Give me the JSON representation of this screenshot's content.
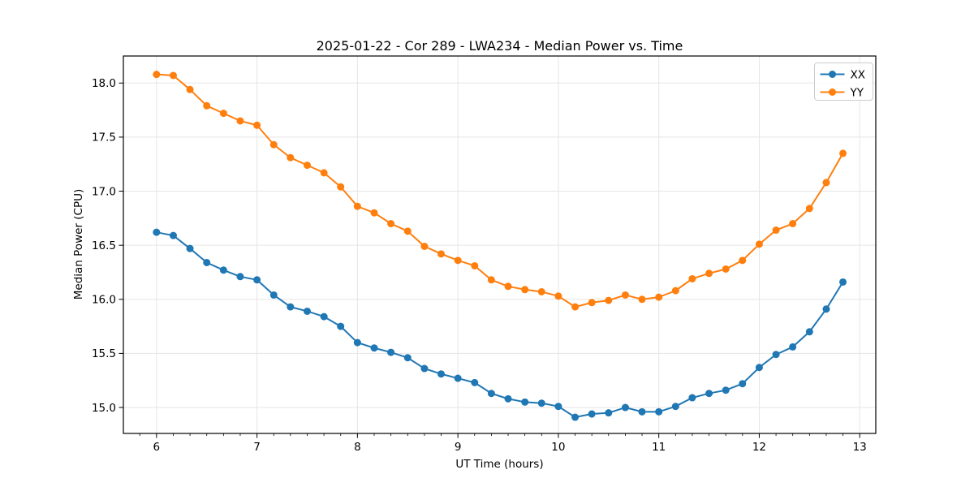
{
  "figure": {
    "background": "#ffffff"
  },
  "chart_data": {
    "type": "line",
    "title": "2025-01-22 - Cor 289 - LWA234 - Median Power vs. Time",
    "xlabel": "UT Time (hours)",
    "ylabel": "Median Power (CPU)",
    "xlim": [
      5.67,
      13.16
    ],
    "ylim": [
      14.76,
      18.25
    ],
    "xticks": [
      6,
      7,
      8,
      9,
      10,
      11,
      12,
      13
    ],
    "xtick_labels": [
      "6",
      "7",
      "8",
      "9",
      "10",
      "11",
      "12",
      "13"
    ],
    "yticks": [
      15.0,
      15.5,
      16.0,
      16.5,
      17.0,
      17.5,
      18.0
    ],
    "ytick_labels": [
      "15.0",
      "15.5",
      "16.0",
      "16.5",
      "17.0",
      "17.5",
      "18.0"
    ],
    "x_minor_step": 0.166667,
    "grid": true,
    "grid_color": "#e5e5e5",
    "legend_position": "upper right",
    "x": [
      6.0,
      6.167,
      6.333,
      6.5,
      6.667,
      6.833,
      7.0,
      7.167,
      7.333,
      7.5,
      7.667,
      7.833,
      8.0,
      8.167,
      8.333,
      8.5,
      8.667,
      8.833,
      9.0,
      9.167,
      9.333,
      9.5,
      9.667,
      9.833,
      10.0,
      10.167,
      10.333,
      10.5,
      10.667,
      10.833,
      11.0,
      11.167,
      11.333,
      11.5,
      11.667,
      11.833,
      12.0,
      12.167,
      12.333,
      12.5,
      12.667,
      12.833
    ],
    "series": [
      {
        "name": "XX",
        "color": "#1f77b4",
        "values": [
          16.62,
          16.59,
          16.47,
          16.34,
          16.27,
          16.21,
          16.18,
          16.04,
          15.93,
          15.89,
          15.84,
          15.75,
          15.6,
          15.55,
          15.51,
          15.46,
          15.36,
          15.31,
          15.27,
          15.23,
          15.13,
          15.08,
          15.05,
          15.04,
          15.01,
          14.91,
          14.94,
          14.95,
          15.0,
          14.96,
          14.96,
          15.01,
          15.09,
          15.13,
          15.16,
          15.22,
          15.37,
          15.49,
          15.56,
          15.7,
          15.91,
          16.16
        ]
      },
      {
        "name": "YY",
        "color": "#ff7f0e",
        "values": [
          18.08,
          18.07,
          17.94,
          17.79,
          17.72,
          17.65,
          17.61,
          17.43,
          17.31,
          17.24,
          17.17,
          17.04,
          16.86,
          16.8,
          16.7,
          16.63,
          16.49,
          16.42,
          16.36,
          16.31,
          16.18,
          16.12,
          16.09,
          16.07,
          16.03,
          15.93,
          15.97,
          15.99,
          16.04,
          16.0,
          16.02,
          16.08,
          16.19,
          16.24,
          16.28,
          16.36,
          16.51,
          16.64,
          16.7,
          16.84,
          17.08,
          17.35
        ]
      }
    ]
  }
}
